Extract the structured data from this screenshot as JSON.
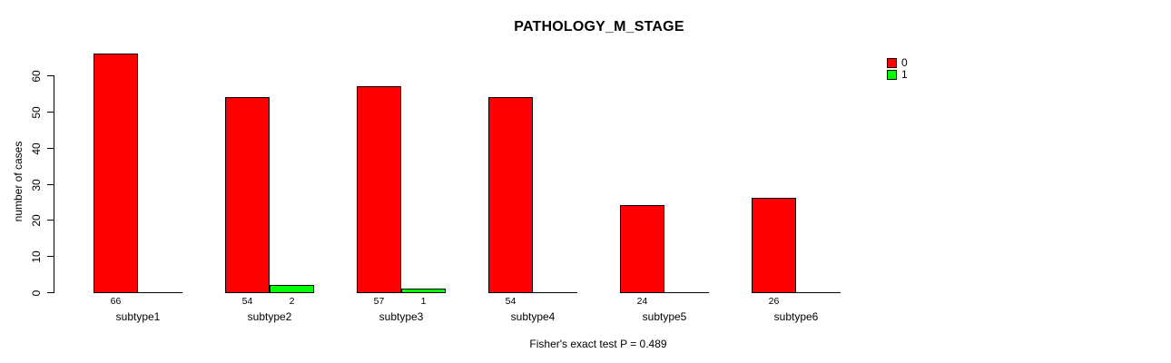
{
  "chart_data": {
    "type": "bar",
    "title": "PATHOLOGY_M_STAGE",
    "ylabel": "number of cases",
    "xlabel": "",
    "footer": "Fisher's exact test P = 0.489",
    "categories": [
      "subtype1",
      "subtype2",
      "subtype3",
      "subtype4",
      "subtype5",
      "subtype6"
    ],
    "series": [
      {
        "name": "0",
        "color": "#ff0000",
        "values": [
          66,
          54,
          57,
          54,
          24,
          26
        ]
      },
      {
        "name": "1",
        "color": "#00ff00",
        "values": [
          0,
          2,
          1,
          0,
          0,
          0
        ]
      }
    ],
    "ylim": [
      0,
      60
    ],
    "yticks": [
      0,
      10,
      20,
      30,
      40,
      50,
      60
    ],
    "legend_position": "top-right",
    "grid": false,
    "bar_value_labels": true,
    "colors": {
      "text": "#000000",
      "axis": "#000000",
      "background": "#ffffff"
    }
  }
}
